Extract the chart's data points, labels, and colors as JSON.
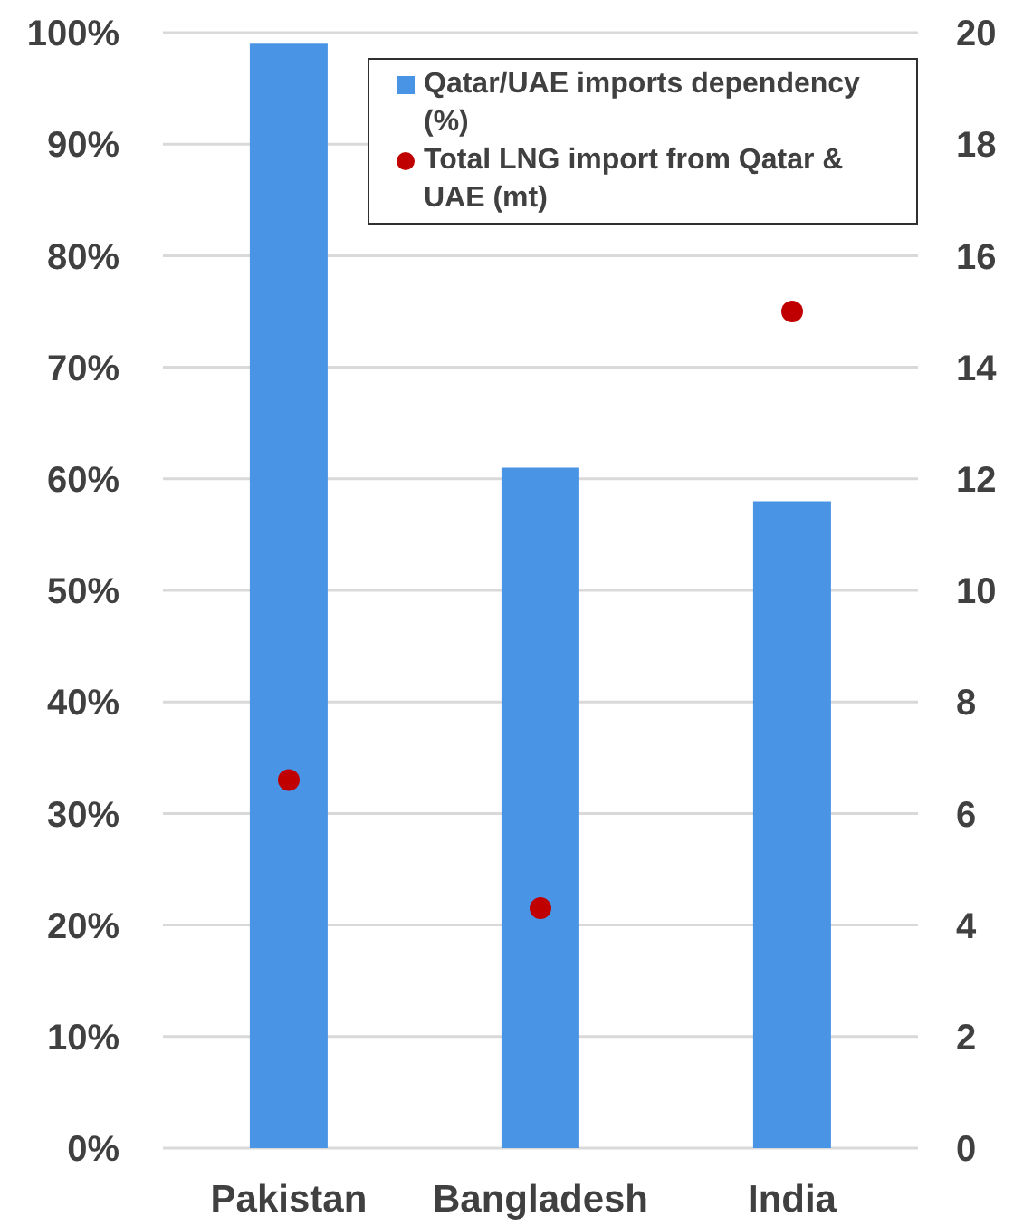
{
  "chart_data": {
    "type": "bar",
    "categories": [
      "Pakistan",
      "Bangladesh",
      "India"
    ],
    "series": [
      {
        "name": "Qatar/UAE imports dependency (%)",
        "color": "#4a94e6",
        "values": [
          99,
          61,
          58
        ]
      },
      {
        "name": "Total LNG import from Qatar & UAE (mt)",
        "type": "scatter",
        "axis": "y2",
        "color": "#c00000",
        "values": [
          6.6,
          4.3,
          15
        ]
      }
    ],
    "ylim": [
      0,
      100
    ],
    "yticks": [
      {
        "value": 0,
        "label": "0%"
      },
      {
        "value": 10,
        "label": "10%"
      },
      {
        "value": 20,
        "label": "20%"
      },
      {
        "value": 30,
        "label": "30%"
      },
      {
        "value": 40,
        "label": "40%"
      },
      {
        "value": 50,
        "label": "50%"
      },
      {
        "value": 60,
        "label": "60%"
      },
      {
        "value": 70,
        "label": "70%"
      },
      {
        "value": 80,
        "label": "80%"
      },
      {
        "value": 90,
        "label": "90%"
      },
      {
        "value": 100,
        "label": "100%"
      }
    ],
    "y2lim": [
      0,
      20
    ],
    "y2ticks": [
      0,
      2,
      4,
      6,
      8,
      10,
      12,
      14,
      16,
      18,
      20
    ],
    "grid": "y",
    "legend": "top right",
    "marker": "circle"
  }
}
